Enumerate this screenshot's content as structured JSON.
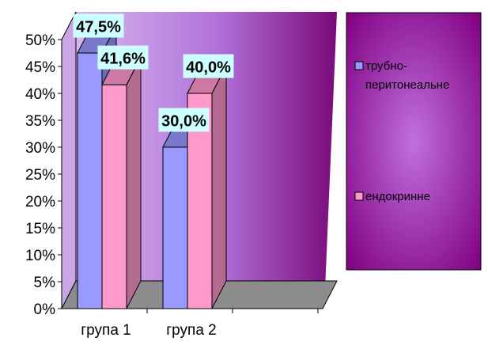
{
  "chart_data": {
    "type": "bar",
    "categories": [
      "група 1",
      "група 2"
    ],
    "series": [
      {
        "name": "трубно-перитонеальне",
        "legend_lines": [
          "трубно-",
          "перитонеальне"
        ],
        "values": [
          47.5,
          30.0
        ],
        "labels": [
          "47,5%",
          "30,0%"
        ],
        "color": "#9999ff",
        "side_color": "#6b6bb3",
        "top_color": "#7a7acc"
      },
      {
        "name": "ендокринне",
        "legend_lines": [
          "ендокринне"
        ],
        "values": [
          41.6,
          40.0
        ],
        "labels": [
          "41,6%",
          "40,0%"
        ],
        "color": "#ff99cc",
        "side_color": "#b36b8f",
        "top_color": "#cc7aa3"
      }
    ],
    "y_ticks": [
      "0%",
      "5%",
      "10%",
      "15%",
      "20%",
      "25%",
      "30%",
      "35%",
      "40%",
      "45%",
      "50%"
    ],
    "ylim": [
      0,
      50
    ],
    "legend_position": "right",
    "data_label_background": "#ccffff",
    "wall_colors": [
      "#d8b8f0",
      "#b070d8",
      "#7a0a7a"
    ],
    "floor_color": "#8c8c8c",
    "legend_colors": [
      "#c070e0",
      "#800080"
    ],
    "title": "",
    "xlabel": "",
    "ylabel": ""
  }
}
